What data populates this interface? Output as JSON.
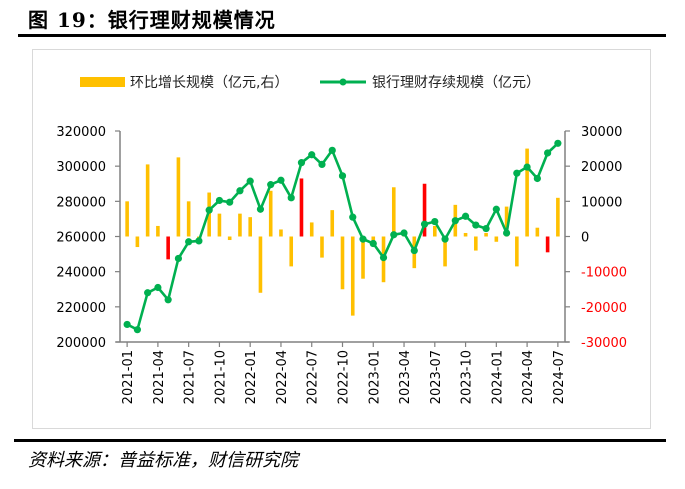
{
  "figure": {
    "title_prefix": "图 ",
    "title_number": "19",
    "title_text": "：银行理财规模情况",
    "source": "资料来源：普益标准，财信研究院"
  },
  "colors": {
    "bar_positive": "#FFC000",
    "bar_highlight": "#FF0000",
    "line": "#00B050",
    "axis": "#808080",
    "negative_tick": "#FF0000"
  },
  "chart_data": {
    "type": "bar+line",
    "title": "银行理财规模情况",
    "legend": [
      {
        "name": "环比增长规模（亿元,右）",
        "kind": "bar"
      },
      {
        "name": "银行理财存续规模（亿元）",
        "kind": "line"
      }
    ],
    "legend_position": "top",
    "x": [
      "2021-01",
      "2021-02",
      "2021-03",
      "2021-04",
      "2021-05",
      "2021-06",
      "2021-07",
      "2021-08",
      "2021-09",
      "2021-10",
      "2021-11",
      "2021-12",
      "2022-01",
      "2022-02",
      "2022-03",
      "2022-04",
      "2022-05",
      "2022-06",
      "2022-07",
      "2022-08",
      "2022-09",
      "2022-10",
      "2022-11",
      "2022-12",
      "2023-01",
      "2023-02",
      "2023-03",
      "2023-04",
      "2023-05",
      "2023-06",
      "2023-07",
      "2023-08",
      "2023-09",
      "2023-10",
      "2023-11",
      "2023-12",
      "2024-01",
      "2024-02",
      "2024-03",
      "2024-04",
      "2024-05",
      "2024-06",
      "2024-07"
    ],
    "x_tick_labels": [
      "2021-01",
      "2021-04",
      "2021-07",
      "2021-10",
      "2022-01",
      "2022-04",
      "2022-07",
      "2022-10",
      "2023-01",
      "2023-04",
      "2023-07",
      "2023-10",
      "2024-01",
      "2024-04",
      "2024-07"
    ],
    "left_axis": {
      "label": "",
      "ylim": [
        200000,
        320000
      ],
      "ticks": [
        "200000",
        "220000",
        "240000",
        "260000",
        "280000",
        "300000",
        "320000"
      ]
    },
    "right_axis": {
      "label": "",
      "ylim": [
        -30000,
        30000
      ],
      "ticks": [
        "-30000",
        "-20000",
        "-10000",
        "0",
        "10000",
        "20000",
        "30000"
      ]
    },
    "series": [
      {
        "name": "环比增长规模（亿元,右）",
        "type": "bar",
        "axis": "right",
        "values": [
          10000,
          -3000,
          20500,
          3000,
          -6500,
          22500,
          10000,
          -1000,
          12500,
          6500,
          -1000,
          6500,
          5500,
          -16000,
          13000,
          2000,
          -8500,
          16500,
          4000,
          -6000,
          7500,
          -15000,
          -22500,
          -12000,
          -2000,
          -13000,
          14000,
          1500,
          -9000,
          15000,
          3000,
          -8500,
          9000,
          1000,
          -4000,
          1000,
          -1500,
          8500,
          -8500,
          25000,
          2500,
          -4500,
          11000
        ],
        "highlight_indices": [
          4,
          17,
          29,
          41
        ]
      },
      {
        "name": "银行理财存续规模（亿元）",
        "type": "line",
        "axis": "left",
        "values": [
          210000,
          207000,
          228000,
          231000,
          224000,
          247500,
          257000,
          257500,
          275000,
          280500,
          279500,
          286000,
          291500,
          275500,
          289500,
          292000,
          282000,
          302000,
          306500,
          301000,
          309000,
          294500,
          271000,
          258500,
          256000,
          248000,
          261000,
          262000,
          252000,
          267000,
          268500,
          258500,
          269000,
          271500,
          266500,
          264500,
          275500,
          262000,
          296000,
          299500,
          293000,
          307500,
          313000
        ]
      }
    ]
  }
}
